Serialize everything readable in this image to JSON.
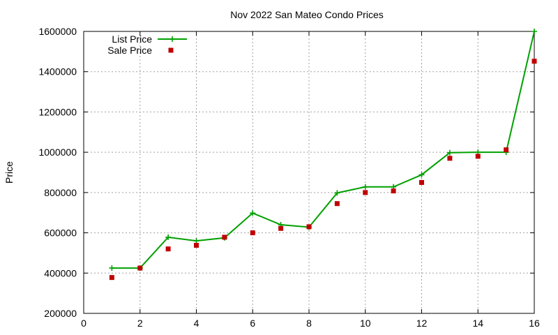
{
  "chart_data": {
    "type": "line",
    "title": "Nov 2022 San Mateo Condo Prices",
    "xlabel": "",
    "ylabel": "Price",
    "xlim": [
      0,
      16
    ],
    "ylim": [
      200000,
      1600000
    ],
    "xticks": [
      0,
      2,
      4,
      6,
      8,
      10,
      12,
      14,
      16
    ],
    "yticks": [
      200000,
      400000,
      600000,
      800000,
      1000000,
      1200000,
      1400000,
      1600000
    ],
    "grid": true,
    "legend_position": "top-left",
    "series": [
      {
        "name": "List Price",
        "style": "line-plus",
        "color": "#00a000",
        "x": [
          1,
          2,
          3,
          4,
          5,
          6,
          7,
          8,
          9,
          10,
          11,
          12,
          13,
          14,
          15,
          16
        ],
        "y": [
          425000,
          425000,
          578000,
          560000,
          575000,
          698000,
          640000,
          628000,
          798000,
          828000,
          828000,
          888000,
          998000,
          1000000,
          1000000,
          1600000
        ]
      },
      {
        "name": "Sale Price",
        "style": "square-points",
        "color": "#c00000",
        "x": [
          1,
          2,
          3,
          4,
          5,
          6,
          7,
          8,
          9,
          10,
          11,
          12,
          13,
          14,
          15,
          16
        ],
        "y": [
          378000,
          425000,
          520000,
          538000,
          578000,
          600000,
          622000,
          630000,
          745000,
          800000,
          808000,
          850000,
          970000,
          980000,
          1012000,
          1452000
        ]
      }
    ]
  }
}
